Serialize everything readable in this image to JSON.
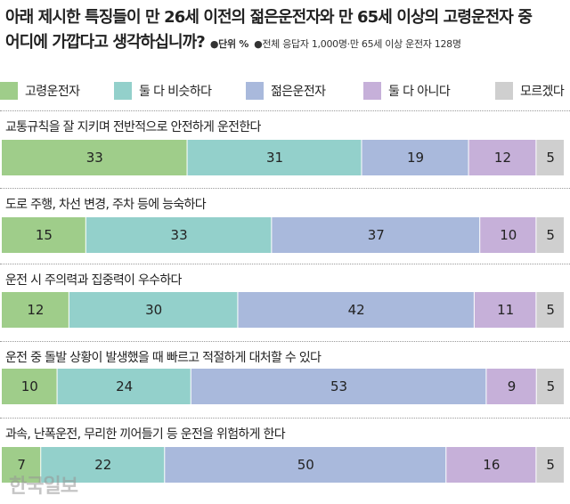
{
  "title_line1": "아래 제시한 특징들이 만 26세 이전의 젊은운전자와 만 65세 이상의 고령운전자 중",
  "title_line2": "어디에 가깝다고 생각하십니까?",
  "unit_label": "●단위 %",
  "respondents_label": "●전체 응답자 1,000명·만 65세 이상 운전자 128명",
  "watermark": "한국일보",
  "colors": {
    "고령운전자": "#9fcd8a",
    "둘 다 비슷하다": "#93d0cb",
    "젊은운전자": "#a9b9dc",
    "둘 다 아니다": "#c6b0d9",
    "모르겠다": "#cfcfcf"
  },
  "chart_data": {
    "type": "bar",
    "orientation": "horizontal",
    "stacked": true,
    "unit": "%",
    "categories": [
      "교통규칙을 잘 지키며 전반적으로 안전하게 운전한다",
      "도로 주행, 차선 변경, 주차 등에 능숙하다",
      "운전 시 주의력과 집중력이 우수하다",
      "운전 중 돌발 상황이 발생했을 때 빠르고 적절하게 대처할 수 있다",
      "과속, 난폭운전, 무리한 끼어들기 등 운전을 위험하게 한다"
    ],
    "series": [
      {
        "name": "고령운전자",
        "values": [
          33,
          15,
          12,
          10,
          7
        ]
      },
      {
        "name": "둘 다 비슷하다",
        "values": [
          31,
          33,
          30,
          24,
          22
        ]
      },
      {
        "name": "젊은운전자",
        "values": [
          19,
          37,
          42,
          53,
          50
        ]
      },
      {
        "name": "둘 다 아니다",
        "values": [
          12,
          10,
          11,
          9,
          16
        ]
      },
      {
        "name": "모르겠다",
        "values": [
          5,
          5,
          5,
          5,
          5
        ]
      }
    ],
    "legend_position": "top",
    "grid": false
  }
}
